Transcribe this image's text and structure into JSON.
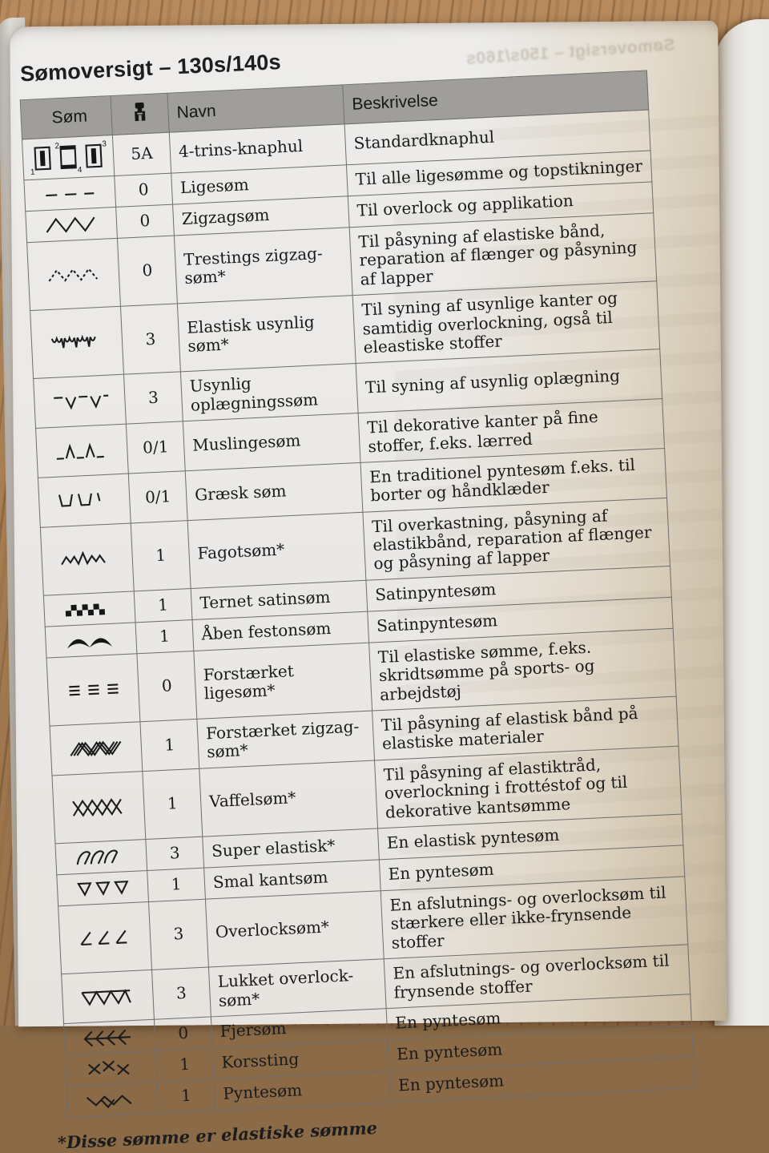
{
  "page": {
    "title": "Sømoversigt – 130s/140s",
    "ghost_title": "Sømoversigt – 150s/160s",
    "footnote": "*Disse sømme er elastiske sømme"
  },
  "colors": {
    "paper": "#eae8e5",
    "header_band": "#a09e9b",
    "wood": "#a87e52",
    "ink": "#1a1a1a"
  },
  "table": {
    "headers": {
      "som": "Søm",
      "foot_icon": "presser-foot-icon",
      "navn": "Navn",
      "beskrivelse": "Beskrivelse"
    },
    "rows": [
      {
        "symbol": "buttonhole-4step",
        "foot": "5A",
        "navn": "4-trins-knaphul",
        "beskrivelse": "Standardknaphul"
      },
      {
        "symbol": "straight-stitch",
        "foot": "0",
        "navn": "Ligesøm",
        "beskrivelse": "Til alle ligesømme og topstikninger"
      },
      {
        "symbol": "zigzag",
        "foot": "0",
        "navn": "Zigzagsøm",
        "beskrivelse": "Til overlock og applikation"
      },
      {
        "symbol": "three-step-zigzag",
        "foot": "0",
        "navn": "Trestings zigzag-søm*",
        "beskrivelse": "Til påsyning af elastiske bånd, reparation af flænger og påsyning af lapper"
      },
      {
        "symbol": "elastic-blind-hem",
        "foot": "3",
        "navn": "Elastisk usynlig søm*",
        "beskrivelse": "Til syning af usynlige kanter og samtidig overlockning, også til eleastiske stoffer"
      },
      {
        "symbol": "blind-hem",
        "foot": "3",
        "navn": "Usynlig oplægningssøm",
        "beskrivelse": "Til syning af usynlig oplægning"
      },
      {
        "symbol": "shell-edge",
        "foot": "0/1",
        "navn": "Muslingesøm",
        "beskrivelse": "Til dekorative kanter på fine stoffer, f.eks. lærred"
      },
      {
        "symbol": "greek-key",
        "foot": "0/1",
        "navn": "Græsk søm",
        "beskrivelse": "En traditionel pyntesøm f.eks. til borter og håndklæder"
      },
      {
        "symbol": "fagot",
        "foot": "1",
        "navn": "Fagotsøm*",
        "beskrivelse": "Til overkastning, påsyning af elastikbånd, reparation af flænger og påsyning af lapper"
      },
      {
        "symbol": "checker-satin",
        "foot": "1",
        "navn": "Ternet satinsøm",
        "beskrivelse": "Satinpyntesøm"
      },
      {
        "symbol": "open-scallop",
        "foot": "1",
        "navn": "Åben festonsøm",
        "beskrivelse": "Satinpyntesøm"
      },
      {
        "symbol": "reinforced-straight",
        "foot": "0",
        "navn": "Forstærket ligesøm*",
        "beskrivelse": "Til elastiske sømme, f.eks. skridtsømme på sports- og arbejdstøj"
      },
      {
        "symbol": "reinforced-zigzag",
        "foot": "1",
        "navn": "Forstærket zigzag-søm*",
        "beskrivelse": "Til påsyning af elastisk bånd på elastiske materialer"
      },
      {
        "symbol": "waffle",
        "foot": "1",
        "navn": "Vaffelsøm*",
        "beskrivelse": "Til påsyning af elastiktråd, overlockning i frottéstof og til dekorative kantsømme"
      },
      {
        "symbol": "super-elastic",
        "foot": "3",
        "navn": "Super elastisk*",
        "beskrivelse": "En elastisk pyntesøm"
      },
      {
        "symbol": "narrow-edge",
        "foot": "1",
        "navn": "Smal kantsøm",
        "beskrivelse": "En pyntesøm"
      },
      {
        "symbol": "overlock",
        "foot": "3",
        "navn": "Overlocksøm*",
        "beskrivelse": "En afslutnings- og overlocksøm til stærkere eller ikke-frynsende stoffer"
      },
      {
        "symbol": "closed-overlock",
        "foot": "3",
        "navn": "Lukket overlock-søm*",
        "beskrivelse": "En afslutnings- og overlocksøm til frynsende stoffer"
      },
      {
        "symbol": "feather",
        "foot": "0",
        "navn": "Fjersøm",
        "beskrivelse": "En pyntesøm"
      },
      {
        "symbol": "cross-stitch",
        "foot": "1",
        "navn": "Korssting",
        "beskrivelse": "En pyntesøm"
      },
      {
        "symbol": "decorative",
        "foot": "1",
        "navn": "Pyntesøm",
        "beskrivelse": "En pyntesøm"
      }
    ]
  }
}
